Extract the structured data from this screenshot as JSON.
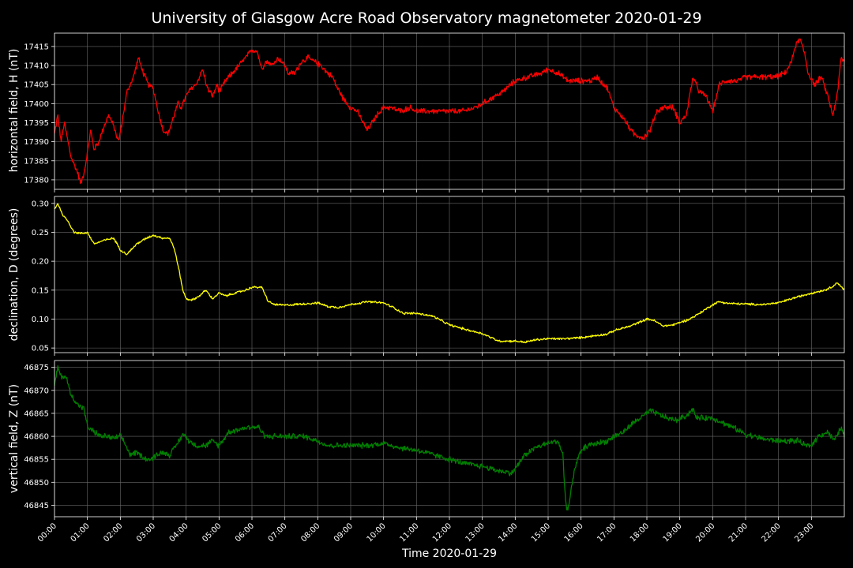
{
  "chart_data": {
    "type": "line",
    "title": "University of Glasgow Acre Road Observatory magnetometer 2020-01-29",
    "xlabel": "Time 2020-01-29",
    "x_ticks": [
      "00:00",
      "01:00",
      "02:00",
      "03:00",
      "04:00",
      "05:00",
      "06:00",
      "07:00",
      "08:00",
      "09:00",
      "10:00",
      "11:00",
      "12:00",
      "13:00",
      "14:00",
      "15:00",
      "16:00",
      "17:00",
      "18:00",
      "19:00",
      "20:00",
      "21:00",
      "22:00",
      "23:00"
    ],
    "xlim": [
      0,
      24
    ],
    "grid": true,
    "panels": [
      {
        "ylabel": "horizontal field, H (nT)",
        "color": "#ff0000",
        "ylim": [
          17377.5,
          17418.5
        ],
        "y_ticks": [
          "17380",
          "17385",
          "17390",
          "17395",
          "17400",
          "17405",
          "17410",
          "17415"
        ],
        "noise": 0.6,
        "series": {
          "x": [
            0,
            0.1,
            0.2,
            0.3,
            0.5,
            0.7,
            0.8,
            0.9,
            1.0,
            1.1,
            1.2,
            1.35,
            1.5,
            1.65,
            1.8,
            1.95,
            2.05,
            2.2,
            2.4,
            2.55,
            2.7,
            2.85,
            3.0,
            3.15,
            3.3,
            3.45,
            3.6,
            3.75,
            3.85,
            4.0,
            4.15,
            4.3,
            4.5,
            4.65,
            4.8,
            4.95,
            5.0,
            5.2,
            5.4,
            5.6,
            5.8,
            6.0,
            6.15,
            6.3,
            6.4,
            6.5,
            6.6,
            6.8,
            7.0,
            7.1,
            7.3,
            7.5,
            7.7,
            7.9,
            8.1,
            8.3,
            8.45,
            8.6,
            8.8,
            9.0,
            9.2,
            9.5,
            9.8,
            10.0,
            10.2,
            10.5,
            10.8,
            11.0,
            11.3,
            11.6,
            12.0,
            12.4,
            12.8,
            13.2,
            13.6,
            14.0,
            14.4,
            14.8,
            15.0,
            15.3,
            15.6,
            16.0,
            16.3,
            16.5,
            16.8,
            17.0,
            17.3,
            17.6,
            17.9,
            18.1,
            18.3,
            18.5,
            18.8,
            19.0,
            19.2,
            19.4,
            19.6,
            19.8,
            20.0,
            20.2,
            20.4,
            20.6,
            20.8,
            21.0,
            21.3,
            21.6,
            21.9,
            22.2,
            22.4,
            22.5,
            22.65,
            22.8,
            22.9,
            23.1,
            23.3,
            23.5,
            23.65,
            23.8,
            23.9,
            24.0
          ],
          "y": [
            17392,
            17397,
            17390,
            17395,
            17386,
            17382,
            17379,
            17382,
            17387,
            17393,
            17388,
            17390,
            17394,
            17397,
            17394,
            17390,
            17395,
            17403,
            17407,
            17412,
            17408,
            17405,
            17404,
            17398,
            17393,
            17392,
            17396,
            17400,
            17399,
            17402,
            17404,
            17405,
            17409,
            17404,
            17402,
            17405,
            17403,
            17406,
            17408,
            17410,
            17412,
            17414,
            17414,
            17409,
            17411,
            17411,
            17410,
            17412,
            17410,
            17408,
            17408,
            17411,
            17412,
            17411,
            17410,
            17408,
            17407,
            17404,
            17401,
            17399,
            17398,
            17393,
            17397,
            17399,
            17399,
            17398,
            17399,
            17398,
            17398,
            17398,
            17398,
            17398,
            17399,
            17401,
            17403,
            17406,
            17407,
            17408,
            17409,
            17408,
            17406,
            17406,
            17406,
            17407,
            17404,
            17399,
            17396,
            17392,
            17391,
            17393,
            17398,
            17399,
            17399,
            17395,
            17397,
            17407,
            17403,
            17402,
            17398,
            17405,
            17406,
            17406,
            17406,
            17407,
            17407,
            17407,
            17407,
            17408,
            17411,
            17415,
            17417,
            17413,
            17408,
            17405,
            17407,
            17402,
            17397,
            17403,
            17412,
            17411
          ]
        }
      },
      {
        "ylabel": "declination, D (degrees)",
        "color": "#ffff00",
        "ylim": [
          0.042,
          0.312
        ],
        "y_ticks": [
          "0.05",
          "0.10",
          "0.15",
          "0.20",
          "0.25",
          "0.30"
        ],
        "noise": 0.0015,
        "series": {
          "x": [
            0,
            0.1,
            0.25,
            0.4,
            0.6,
            0.8,
            1.0,
            1.2,
            1.5,
            1.8,
            2.0,
            2.2,
            2.5,
            2.8,
            3.0,
            3.3,
            3.5,
            3.65,
            3.8,
            3.9,
            4.0,
            4.2,
            4.4,
            4.6,
            4.8,
            5.0,
            5.2,
            5.5,
            5.8,
            6.0,
            6.3,
            6.5,
            6.7,
            7.0,
            7.5,
            8.0,
            8.3,
            8.6,
            9.0,
            9.5,
            10.0,
            10.3,
            10.6,
            11.0,
            11.5,
            12.0,
            12.5,
            13.0,
            13.5,
            14.0,
            14.3,
            14.6,
            15.0,
            15.5,
            16.0,
            16.5,
            16.8,
            17.0,
            17.5,
            18.0,
            18.2,
            18.5,
            18.8,
            19.0,
            19.3,
            19.6,
            20.0,
            20.2,
            20.5,
            21.0,
            21.5,
            22.0,
            22.5,
            23.0,
            23.4,
            23.6,
            23.8,
            24.0
          ],
          "y": [
            0.29,
            0.3,
            0.28,
            0.27,
            0.25,
            0.248,
            0.25,
            0.23,
            0.236,
            0.24,
            0.22,
            0.212,
            0.23,
            0.24,
            0.245,
            0.24,
            0.24,
            0.22,
            0.18,
            0.15,
            0.135,
            0.133,
            0.14,
            0.15,
            0.135,
            0.145,
            0.14,
            0.145,
            0.15,
            0.155,
            0.155,
            0.13,
            0.125,
            0.124,
            0.126,
            0.128,
            0.122,
            0.12,
            0.125,
            0.13,
            0.128,
            0.12,
            0.11,
            0.11,
            0.105,
            0.09,
            0.082,
            0.075,
            0.062,
            0.062,
            0.06,
            0.064,
            0.066,
            0.066,
            0.068,
            0.072,
            0.074,
            0.08,
            0.088,
            0.1,
            0.098,
            0.088,
            0.09,
            0.094,
            0.1,
            0.11,
            0.125,
            0.13,
            0.127,
            0.126,
            0.125,
            0.128,
            0.137,
            0.145,
            0.15,
            0.155,
            0.163,
            0.15
          ]
        }
      },
      {
        "ylabel": "vertical field, Z (nT)",
        "color": "#008000",
        "ylim": [
          46842.5,
          46876.5
        ],
        "y_ticks": [
          "46845",
          "46850",
          "46855",
          "46860",
          "46865",
          "46870",
          "46875"
        ],
        "noise": 0.5,
        "series": {
          "x": [
            0,
            0.1,
            0.2,
            0.35,
            0.5,
            0.7,
            0.9,
            1.0,
            1.2,
            1.4,
            1.6,
            1.8,
            2.0,
            2.1,
            2.3,
            2.5,
            2.8,
            2.95,
            3.1,
            3.3,
            3.5,
            3.7,
            3.9,
            4.1,
            4.3,
            4.6,
            4.8,
            5.0,
            5.3,
            5.6,
            5.9,
            6.2,
            6.4,
            6.6,
            7.0,
            7.3,
            7.6,
            8.0,
            8.3,
            8.6,
            9.0,
            9.5,
            10.0,
            10.5,
            11.0,
            11.5,
            12.0,
            12.5,
            13.0,
            13.5,
            13.9,
            14.1,
            14.3,
            14.6,
            15.0,
            15.3,
            15.45,
            15.5,
            15.55,
            15.6,
            15.7,
            15.8,
            15.95,
            16.1,
            16.2,
            16.5,
            16.8,
            17.0,
            17.3,
            17.6,
            17.9,
            18.1,
            18.3,
            18.6,
            18.9,
            19.2,
            19.4,
            19.5,
            19.7,
            20.0,
            20.3,
            20.6,
            21.0,
            21.5,
            22.0,
            22.4,
            22.6,
            22.8,
            23.0,
            23.2,
            23.5,
            23.7,
            23.9,
            24.0
          ],
          "y": [
            46871,
            46875,
            46873,
            46873,
            46869,
            46867,
            46866,
            46862,
            46861,
            46860,
            46860,
            46859.5,
            46860,
            46859,
            46856,
            46856.5,
            46855,
            46855,
            46856,
            46856.5,
            46856,
            46858,
            46860.5,
            46859,
            46858,
            46858,
            46859,
            46858,
            46861,
            46861.5,
            46862,
            46862,
            46860,
            46860,
            46860,
            46860,
            46860,
            46859,
            46858,
            46858,
            46858,
            46858,
            46858.5,
            46857.5,
            46857,
            46856,
            46855,
            46854,
            46853.5,
            46852.5,
            46852,
            46854,
            46856,
            46857.5,
            46858.5,
            46859,
            46856,
            46849,
            46845,
            46844,
            46848,
            46853,
            46856,
            46857.5,
            46858,
            46858.5,
            46859,
            46860,
            46861,
            46863,
            46864.5,
            46865.5,
            46865,
            46864,
            46863.5,
            46864.5,
            46866,
            46864,
            46864,
            46864,
            46863,
            46862,
            46860.5,
            46859.5,
            46859,
            46859,
            46859,
            46858,
            46858,
            46860,
            46861,
            46859,
            46862,
            46860
          ]
        }
      }
    ]
  }
}
